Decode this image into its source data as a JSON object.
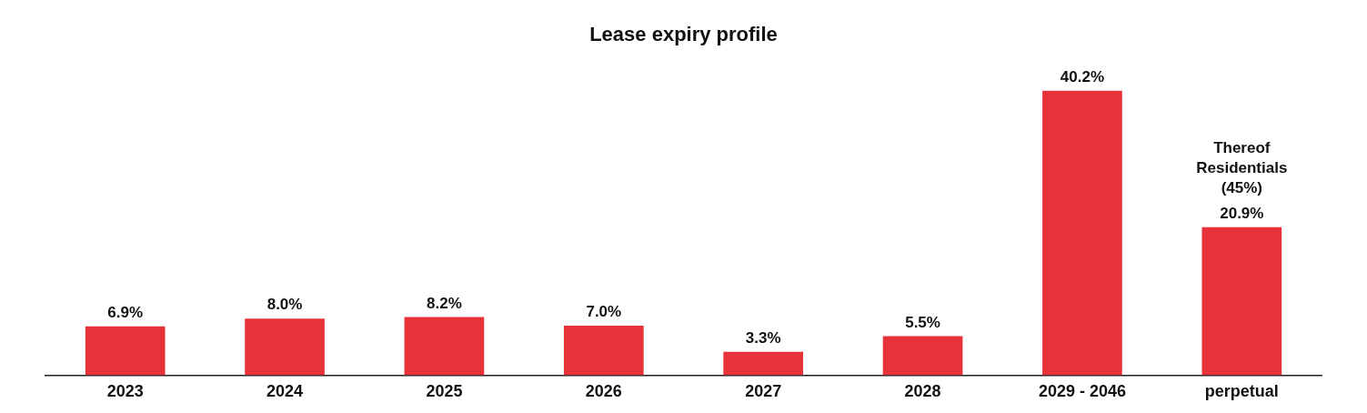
{
  "chart_data": {
    "type": "bar",
    "title": "Lease expiry profile",
    "categories": [
      "2023",
      "2024",
      "2025",
      "2026",
      "2027",
      "2028",
      "2029 - 2046",
      "perpetual"
    ],
    "values": [
      6.9,
      8.0,
      8.2,
      7.0,
      3.3,
      5.5,
      40.2,
      20.9
    ],
    "value_labels": [
      "6.9%",
      "8.0%",
      "8.2%",
      "7.0%",
      "3.3%",
      "5.5%",
      "40.2%",
      "20.9%"
    ],
    "color": "#e8323a",
    "tick_labels": "x",
    "grid": false,
    "legend": false,
    "annotations": [
      {
        "text": "Thereof Residentials (45%)",
        "x": "perpetual",
        "y": 20.9
      }
    ]
  }
}
